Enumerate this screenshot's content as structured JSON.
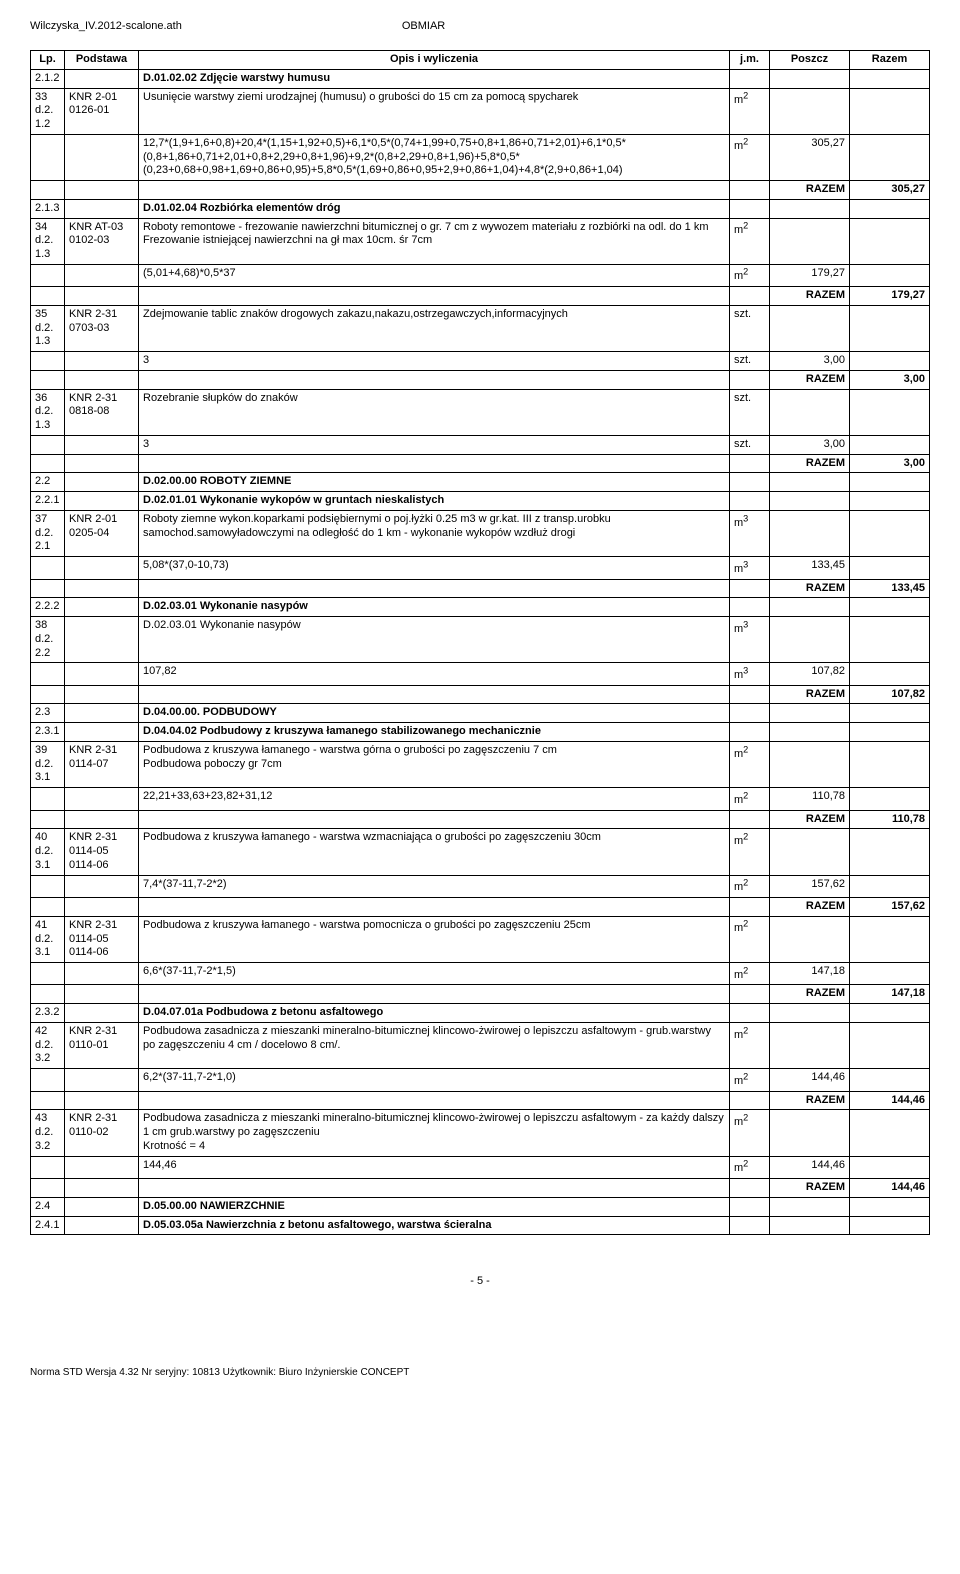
{
  "header": {
    "left": "Wilczyska_IV.2012-scalone.ath",
    "right": "OBMIAR"
  },
  "columns": {
    "lp": "Lp.",
    "podstawa": "Podstawa",
    "opis": "Opis i wyliczenia",
    "jm": "j.m.",
    "poszcz": "Poszcz",
    "razem": "Razem"
  },
  "razem_label": "RAZEM",
  "footer": {
    "page": "- 5 -",
    "meta": "Norma STD Wersja 4.32 Nr seryjny: 10813 Użytkownik: Biuro Inżynierskie CONCEPT"
  },
  "rows": [
    {
      "type": "section",
      "lp": "2.1.2",
      "opis": "D.01.02.02 Zdjęcie warstwy humusu"
    },
    {
      "type": "item",
      "lp": "33\nd.2.\n1.2",
      "pod": "KNR 2-01\n0126-01",
      "opis": "Usunięcie warstwy ziemi urodzajnej (humusu) o grubości do 15 cm za pomocą spycharek",
      "jm": "m2"
    },
    {
      "type": "calc",
      "opis": "12,7*(1,9+1,6+0,8)+20,4*(1,15+1,92+0,5)+6,1*0,5*(0,74+1,99+0,75+0,8+1,86+0,71+2,01)+6,1*0,5*(0,8+1,86+0,71+2,01+0,8+2,29+0,8+1,96)+9,2*(0,8+2,29+0,8+1,96)+5,8*0,5*(0,23+0,68+0,98+1,69+0,86+0,95)+5,8*0,5*(1,69+0,86+0,95+2,9+0,86+1,04)+4,8*(2,9+0,86+1,04)",
      "jm": "m2",
      "poszcz": "305,27"
    },
    {
      "type": "razem",
      "razem": "305,27"
    },
    {
      "type": "section",
      "lp": "2.1.3",
      "opis": "D.01.02.04 Rozbiórka elementów dróg"
    },
    {
      "type": "item",
      "lp": "34\nd.2.\n1.3",
      "pod": "KNR AT-03\n0102-03",
      "opis": "Roboty remontowe - frezowanie nawierzchni bitumicznej o gr. 7 cm z wywozem materiału z rozbiórki na odl. do 1 km\nFrezowanie istniejącej nawierzchni na gł max 10cm. śr 7cm",
      "jm": "m2"
    },
    {
      "type": "calc",
      "opis": "(5,01+4,68)*0,5*37",
      "jm": "m2",
      "poszcz": "179,27"
    },
    {
      "type": "razem",
      "razem": "179,27"
    },
    {
      "type": "item",
      "lp": "35\nd.2.\n1.3",
      "pod": "KNR 2-31\n0703-03",
      "opis": "Zdejmowanie tablic znaków drogowych zakazu,nakazu,ostrzegawczych,informacyjnych",
      "jm": "szt."
    },
    {
      "type": "calc",
      "opis": "3",
      "jm": "szt.",
      "poszcz": "3,00"
    },
    {
      "type": "razem",
      "razem": "3,00"
    },
    {
      "type": "item",
      "lp": "36\nd.2.\n1.3",
      "pod": "KNR 2-31\n0818-08",
      "opis": "Rozebranie słupków do znaków",
      "jm": "szt."
    },
    {
      "type": "calc",
      "opis": "3",
      "jm": "szt.",
      "poszcz": "3,00"
    },
    {
      "type": "razem",
      "razem": "3,00"
    },
    {
      "type": "section",
      "lp": "2.2",
      "opis": "D.02.00.00 ROBOTY ZIEMNE"
    },
    {
      "type": "section",
      "lp": "2.2.1",
      "opis": "D.02.01.01 Wykonanie wykopów w gruntach nieskalistych"
    },
    {
      "type": "item",
      "lp": "37\nd.2.\n2.1",
      "pod": "KNR 2-01\n0205-04",
      "opis": "Roboty ziemne wykon.koparkami podsiębiernymi o poj.łyżki 0.25 m3 w gr.kat. III z transp.urobku samochod.samowyładowczymi na odległość do 1 km - wykonanie wykopów wzdłuż drogi",
      "jm": "m3"
    },
    {
      "type": "calc",
      "opis": "5,08*(37,0-10,73)",
      "jm": "m3",
      "poszcz": "133,45"
    },
    {
      "type": "razem",
      "razem": "133,45"
    },
    {
      "type": "section",
      "lp": "2.2.2",
      "opis": "D.02.03.01 Wykonanie nasypów"
    },
    {
      "type": "item",
      "lp": "38\nd.2.\n2.2",
      "pod": "",
      "opis": "D.02.03.01 Wykonanie nasypów",
      "jm": "m3"
    },
    {
      "type": "calc",
      "opis": "107,82",
      "jm": "m3",
      "poszcz": "107,82"
    },
    {
      "type": "razem",
      "razem": "107,82"
    },
    {
      "type": "section",
      "lp": "2.3",
      "opis": "D.04.00.00. PODBUDOWY"
    },
    {
      "type": "section",
      "lp": "2.3.1",
      "opis": "D.04.04.02 Podbudowy z kruszywa łamanego stabilizowanego mechanicznie"
    },
    {
      "type": "item",
      "lp": "39\nd.2.\n3.1",
      "pod": "KNR 2-31\n0114-07",
      "opis": "Podbudowa z kruszywa łamanego - warstwa górna o grubości po zagęszczeniu 7 cm\nPodbudowa poboczy gr 7cm",
      "jm": "m2"
    },
    {
      "type": "calc",
      "opis": "22,21+33,63+23,82+31,12",
      "jm": "m2",
      "poszcz": "110,78"
    },
    {
      "type": "razem",
      "razem": "110,78"
    },
    {
      "type": "item",
      "lp": "40\nd.2.\n3.1",
      "pod": "KNR 2-31\n0114-05\n0114-06",
      "opis": "Podbudowa z kruszywa łamanego - warstwa wzmacniająca o grubości po zagęszczeniu 30cm",
      "jm": "m2"
    },
    {
      "type": "calc",
      "opis": "7,4*(37-11,7-2*2)",
      "jm": "m2",
      "poszcz": "157,62"
    },
    {
      "type": "razem",
      "razem": "157,62"
    },
    {
      "type": "item",
      "lp": "41\nd.2.\n3.1",
      "pod": "KNR 2-31\n0114-05\n0114-06",
      "opis": "Podbudowa z kruszywa łamanego - warstwa pomocnicza o grubości po zagęszczeniu 25cm",
      "jm": "m2"
    },
    {
      "type": "calc",
      "opis": "6,6*(37-11,7-2*1,5)",
      "jm": "m2",
      "poszcz": "147,18"
    },
    {
      "type": "razem",
      "razem": "147,18"
    },
    {
      "type": "section",
      "lp": "2.3.2",
      "opis": "D.04.07.01a Podbudowa z betonu asfaltowego"
    },
    {
      "type": "item",
      "lp": "42\nd.2.\n3.2",
      "pod": "KNR 2-31\n0110-01",
      "opis": "Podbudowa zasadnicza z mieszanki mineralno-bitumicznej klincowo-żwirowej o lepiszczu asfaltowym - grub.warstwy po zagęszczeniu 4 cm / docelowo 8 cm/.",
      "jm": "m2"
    },
    {
      "type": "calc",
      "opis": "6,2*(37-11,7-2*1,0)",
      "jm": "m2",
      "poszcz": "144,46"
    },
    {
      "type": "razem",
      "razem": "144,46"
    },
    {
      "type": "item",
      "lp": "43\nd.2.\n3.2",
      "pod": "KNR 2-31\n0110-02",
      "opis": "Podbudowa zasadnicza z mieszanki mineralno-bitumicznej klincowo-żwirowej o lepiszczu asfaltowym - za każdy dalszy 1 cm grub.warstwy po zagęszczeniu\nKrotność = 4",
      "jm": "m2"
    },
    {
      "type": "calc",
      "opis": "144,46",
      "jm": "m2",
      "poszcz": "144,46"
    },
    {
      "type": "razem",
      "razem": "144,46"
    },
    {
      "type": "section",
      "lp": "2.4",
      "opis": "D.05.00.00 NAWIERZCHNIE"
    },
    {
      "type": "section",
      "lp": "2.4.1",
      "opis": "D.05.03.05a Nawierzchnia z betonu asfaltowego, warstwa ścieralna"
    }
  ]
}
